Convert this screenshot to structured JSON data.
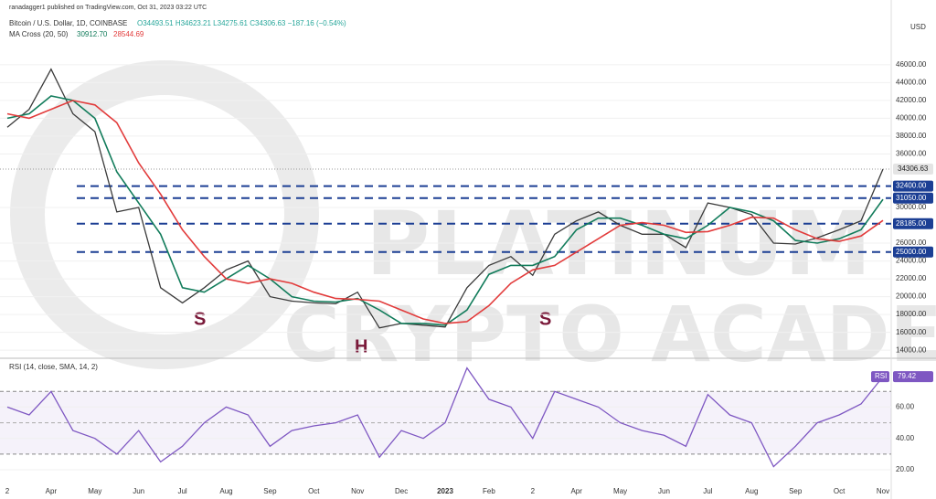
{
  "chart_data": [
    {
      "type": "line",
      "subtitle": "ranadagger1 published on TradingView.com, Oct 31, 2023 03:22 UTC",
      "title": "Bitcoin / U.S. Dollar, 1D, COINBASE",
      "ohlc": "O34493.51 H34623.21 L34275.61 C34306.63 −187.16 (−0.54%)",
      "legend": [
        "MA Cross (20, 50)",
        "30912.70",
        "28544.69"
      ],
      "currency": "USD",
      "categories": [
        "2",
        null,
        "Apr",
        null,
        "May",
        null,
        "Jun",
        null,
        "Jul",
        null,
        "Aug",
        null,
        "Sep",
        null,
        "Oct",
        null,
        "Nov",
        null,
        "Dec",
        null,
        "2023",
        null,
        "Feb",
        null,
        "2",
        null,
        "Apr",
        null,
        "May",
        null,
        "Jun",
        null,
        "Jul",
        null,
        "Aug",
        null,
        "Sep",
        null,
        "Oct",
        null,
        "Nov"
      ],
      "series": [
        {
          "color": "#3a3a3a",
          "values": [
            39000,
            41000,
            45500,
            40500,
            38500,
            29500,
            30000,
            21000,
            19300,
            21000,
            23000,
            24000,
            20000,
            19500,
            19300,
            19200,
            20500,
            16500,
            17000,
            16800,
            16600,
            21000,
            23500,
            24500,
            22400,
            27000,
            28500,
            29500,
            28000,
            27000,
            27000,
            25500,
            30500,
            30000,
            29200,
            26000,
            25900,
            26600,
            27500,
            28500,
            34306.63
          ]
        },
        {
          "color": "#127c5b",
          "values": [
            40000,
            40500,
            42500,
            42000,
            40000,
            34000,
            30500,
            27000,
            21000,
            20500,
            22000,
            23500,
            22000,
            20000,
            19500,
            19400,
            19800,
            18500,
            17000,
            17000,
            16800,
            18500,
            22500,
            23500,
            23500,
            24500,
            27500,
            28800,
            28800,
            28000,
            27000,
            26500,
            28000,
            30000,
            29500,
            28500,
            26300,
            26000,
            26500,
            27500,
            30912.7
          ]
        },
        {
          "color": "#e23b3b",
          "values": [
            40500,
            40000,
            41000,
            42000,
            41500,
            39500,
            35000,
            31500,
            27500,
            24500,
            22000,
            21500,
            22000,
            21500,
            20500,
            19800,
            19700,
            19500,
            18500,
            17500,
            17000,
            17200,
            19000,
            21500,
            23000,
            23500,
            25000,
            26500,
            28000,
            28300,
            28000,
            27200,
            27300,
            28000,
            28900,
            28800,
            27500,
            26500,
            26200,
            26800,
            28544.69
          ]
        }
      ],
      "last_label": "34306.63",
      "levels": [
        {
          "value": 32400,
          "label": "32400.00"
        },
        {
          "value": 31050,
          "label": "31050.00"
        },
        {
          "value": 28185,
          "label": "28185.00"
        },
        {
          "value": 25000,
          "label": "25000.00"
        }
      ],
      "levels_color": "#1c3f94",
      "annotations": [
        "S",
        "H",
        "S"
      ],
      "watermark": [
        "PLATINUM",
        "CRYPTO ACADEMY"
      ],
      "ylim": [
        13300,
        48750
      ],
      "yticks": [
        {
          "value": 14000,
          "label": "14000.00"
        },
        {
          "value": 16000,
          "label": "16000.00"
        },
        {
          "value": 18000,
          "label": "18000.00"
        },
        {
          "value": 20000,
          "label": "20000.00"
        },
        {
          "value": 22000,
          "label": "22000.00"
        },
        {
          "value": 24000,
          "label": "24000.00"
        },
        {
          "value": 26000,
          "label": "26000.00"
        },
        {
          "value": 30000,
          "label": "30000.00"
        },
        {
          "value": 36000,
          "label": "36000.00"
        },
        {
          "value": 38000,
          "label": "38000.00"
        },
        {
          "value": 40000,
          "label": "40000.00"
        },
        {
          "value": 42000,
          "label": "42000.00"
        },
        {
          "value": 44000,
          "label": "44000.00"
        },
        {
          "value": 46000,
          "label": "46000.00"
        }
      ],
      "grid": true
    },
    {
      "type": "line",
      "title": "RSI (14, close, SMA, 14, 2)",
      "badge": "RSI",
      "last_label": "79.42",
      "series": [
        {
          "color": "#7e57c2",
          "values": [
            60,
            55,
            70,
            45,
            40,
            30,
            45,
            25,
            35,
            50,
            60,
            55,
            35,
            45,
            48,
            50,
            55,
            28,
            45,
            40,
            50,
            85,
            65,
            60,
            40,
            70,
            65,
            60,
            50,
            45,
            42,
            35,
            68,
            55,
            50,
            22,
            35,
            50,
            55,
            62,
            79.42
          ]
        }
      ],
      "band": [
        30,
        70
      ],
      "midline": 50,
      "ylim": [
        6,
        90
      ],
      "yticks": [
        {
          "value": 20,
          "label": "20.00"
        },
        {
          "value": 40,
          "label": "40.00"
        },
        {
          "value": 60,
          "label": "60.00"
        }
      ],
      "grid": true
    }
  ]
}
